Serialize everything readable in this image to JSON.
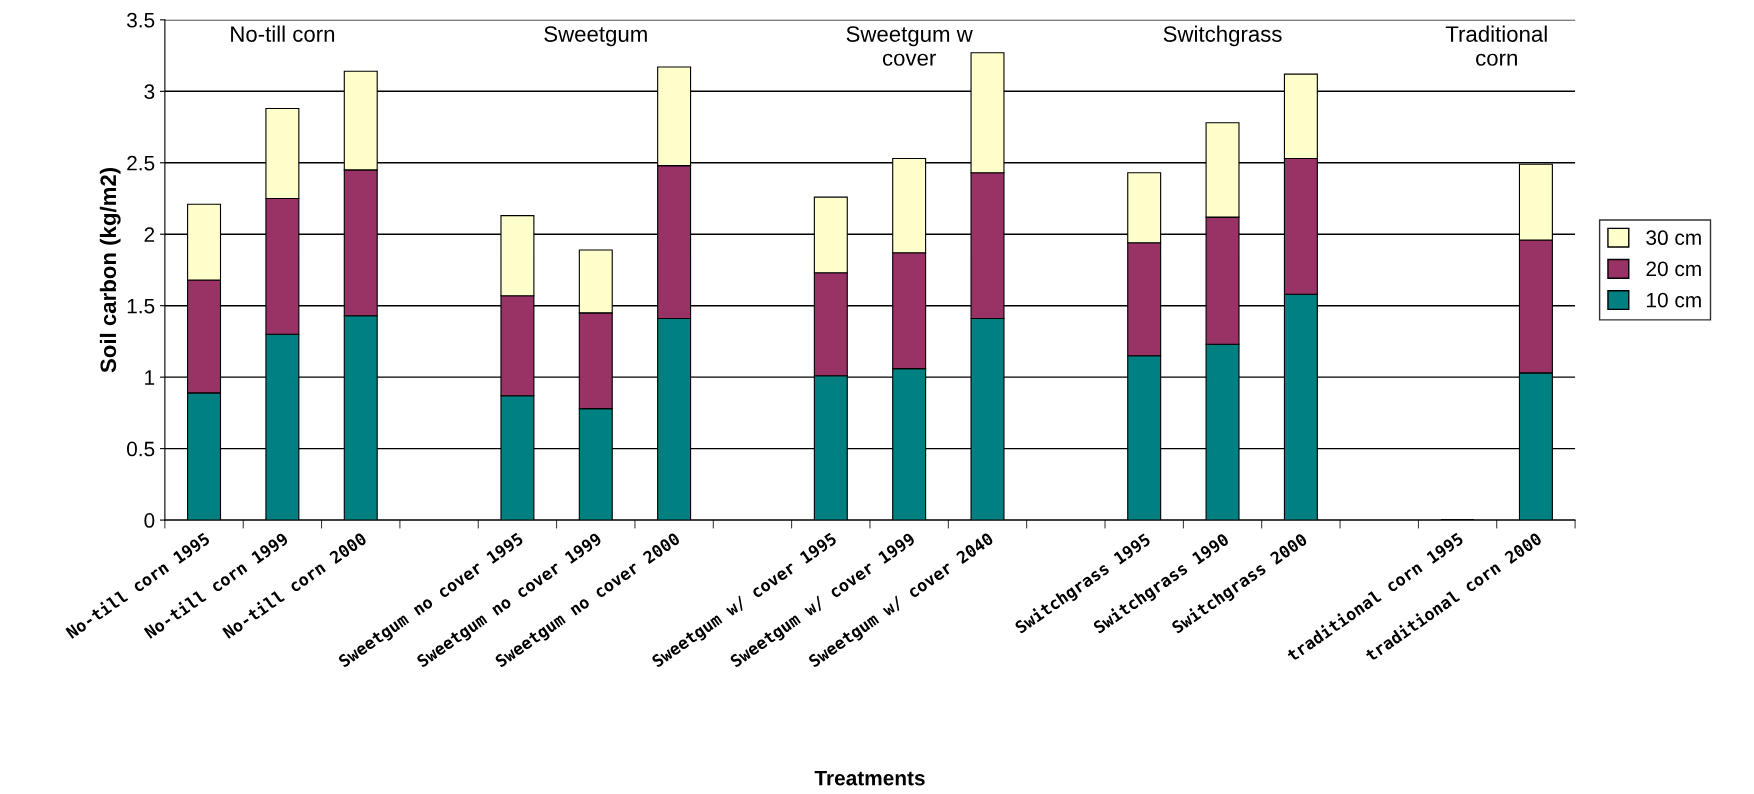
{
  "chart_data": {
    "type": "bar",
    "stacked": true,
    "xlabel": "Treatments",
    "ylabel": "Soil carbon (kg/m2)",
    "categories": [
      "No-till corn 1995",
      "No-till corn 1999",
      "No-till corn 2000",
      null,
      "Sweetgum no cover 1995",
      "Sweetgum no cover 1999",
      "Sweetgum no cover 2000",
      null,
      "Sweetgum w/ cover 1995",
      "Sweetgum w/ cover 1999",
      "Sweetgum w/ cover 2040",
      null,
      "Switchgrass 1995",
      "Switchgrass 1990",
      "Switchgrass 2000",
      null,
      "traditional corn 1995",
      "traditional corn 2000"
    ],
    "series": [
      {
        "name": "10 cm",
        "color": "#008080",
        "values": [
          0.89,
          1.3,
          1.43,
          null,
          0.87,
          0.78,
          1.41,
          null,
          1.01,
          1.06,
          1.41,
          null,
          1.15,
          1.23,
          1.58,
          null,
          0,
          1.03
        ]
      },
      {
        "name": "20 cm",
        "color": "#993366",
        "values": [
          0.79,
          0.95,
          1.02,
          null,
          0.7,
          0.67,
          1.07,
          null,
          0.72,
          0.81,
          1.02,
          null,
          0.79,
          0.89,
          0.95,
          null,
          0,
          0.93
        ]
      },
      {
        "name": "30 cm",
        "color": "#ffffcc",
        "values": [
          0.53,
          0.63,
          0.69,
          null,
          0.56,
          0.44,
          0.69,
          null,
          0.53,
          0.66,
          0.84,
          null,
          0.49,
          0.66,
          0.59,
          null,
          0,
          0.53
        ]
      }
    ],
    "annotations": [
      "No-till corn",
      "Sweetgum",
      "Sweetgum w\ncover",
      "Switchgrass",
      "Traditional\ncorn"
    ],
    "ylim": [
      0,
      3.5
    ],
    "yticks": [
      0,
      0.5,
      1,
      1.5,
      2,
      2.5,
      3,
      3.5
    ],
    "grid": "y",
    "legend": "right"
  }
}
